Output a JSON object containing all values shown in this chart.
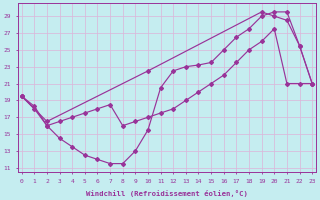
{
  "xlabel": "Windchill (Refroidissement éolien,°C)",
  "xlim": [
    -0.3,
    23.3
  ],
  "ylim": [
    10.5,
    30.5
  ],
  "xticks": [
    0,
    1,
    2,
    3,
    4,
    5,
    6,
    7,
    8,
    9,
    10,
    11,
    12,
    13,
    14,
    15,
    16,
    17,
    18,
    19,
    20,
    21,
    22,
    23
  ],
  "yticks": [
    11,
    13,
    15,
    17,
    19,
    21,
    23,
    25,
    27,
    29
  ],
  "bg_color": "#c5edf0",
  "grid_color": "#dbb8db",
  "line_color": "#993399",
  "curves": [
    {
      "x": [
        0,
        1,
        2,
        3,
        4,
        5,
        6,
        7,
        8,
        9,
        10,
        11,
        12,
        13,
        14,
        15,
        16,
        17,
        18,
        19,
        20,
        21,
        22,
        23
      ],
      "y": [
        19.5,
        18.0,
        16.0,
        14.5,
        13.5,
        12.5,
        12.0,
        11.5,
        11.5,
        13.0,
        15.5,
        20.5,
        22.5,
        23.0,
        23.2,
        23.5,
        25.0,
        26.5,
        27.5,
        29.0,
        29.5,
        29.5,
        25.5,
        21.0
      ]
    },
    {
      "x": [
        0,
        2,
        10,
        19,
        20,
        21,
        22,
        23
      ],
      "y": [
        19.5,
        16.5,
        22.5,
        29.5,
        29.0,
        28.5,
        25.5,
        21.0
      ]
    },
    {
      "x": [
        0,
        1,
        2,
        3,
        4,
        5,
        6,
        7,
        8,
        9,
        10,
        11,
        12,
        13,
        14,
        15,
        16,
        17,
        18,
        19,
        20,
        21,
        22,
        23
      ],
      "y": [
        19.5,
        18.3,
        16.0,
        16.5,
        17.0,
        17.5,
        18.0,
        18.5,
        16.0,
        16.5,
        17.0,
        17.5,
        18.0,
        19.0,
        20.0,
        21.0,
        22.0,
        23.5,
        25.0,
        26.0,
        27.5,
        21.0,
        21.0,
        21.0
      ]
    }
  ]
}
